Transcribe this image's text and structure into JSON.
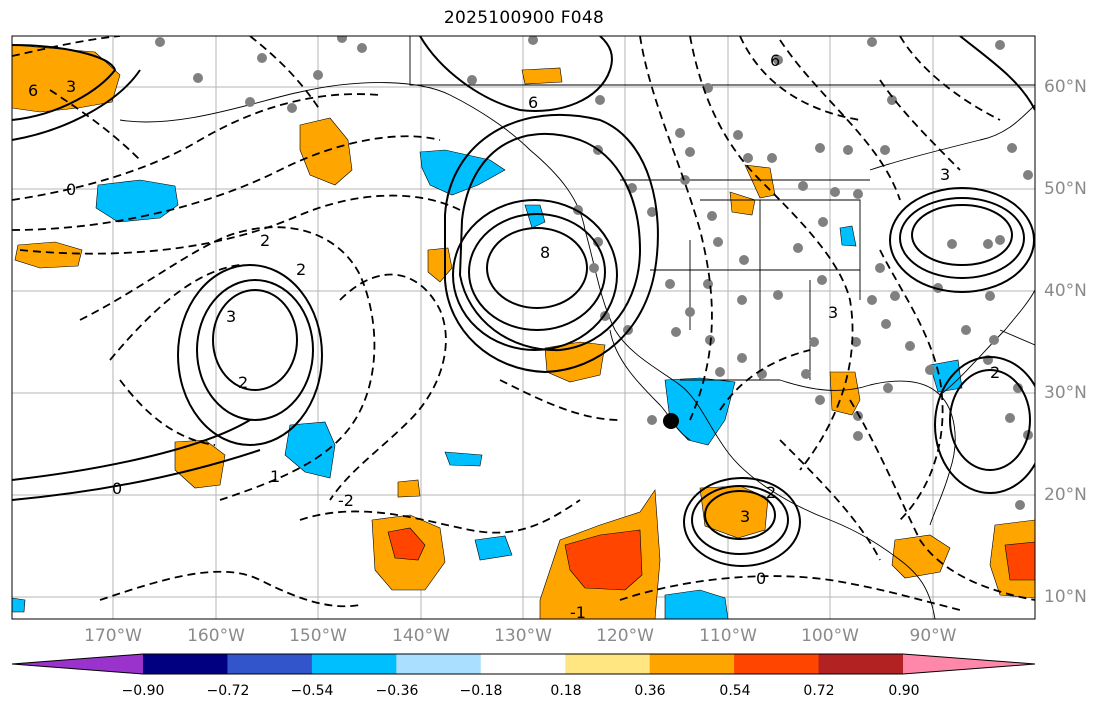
{
  "title": "2025100900 F048",
  "lat_labels": [
    "60°N",
    "50°N",
    "40°N",
    "30°N",
    "20°N",
    "10°N"
  ],
  "lon_labels": [
    "170°W",
    "160°W",
    "150°W",
    "140°W",
    "130°W",
    "120°W",
    "110°W",
    "100°W",
    "90°W"
  ],
  "colorbar": {
    "colors": [
      "#9933cc",
      "#000080",
      "#3355cc",
      "#00bfff",
      "#aadfff",
      "#ffffff",
      "#ffe680",
      "#ffa500",
      "#ff4500",
      "#b22222",
      "#ff88aa"
    ],
    "ticks": [
      "−0.90",
      "−0.72",
      "−0.54",
      "−0.36",
      "−0.18",
      "0.18",
      "0.36",
      "0.54",
      "0.72",
      "0.90"
    ]
  },
  "contour_labels": {
    "high_center": "8",
    "gulf_alaska": "6",
    "pacific_high": "3",
    "pacific_ring": "2",
    "mexico_low": "3",
    "mexico_ring": "2",
    "east_high": "3",
    "se_ring": "2",
    "zero_a": "0",
    "zero_b": "0",
    "zero_c": "0",
    "neg1_a": "-1",
    "neg1_b": "1",
    "neg2_a": "2",
    "neg2_b": "2",
    "neg2_c": "-2",
    "neg3": "3",
    "neg6": "6",
    "west_a": "3",
    "west_b": "6"
  },
  "marker": "storm-center"
}
